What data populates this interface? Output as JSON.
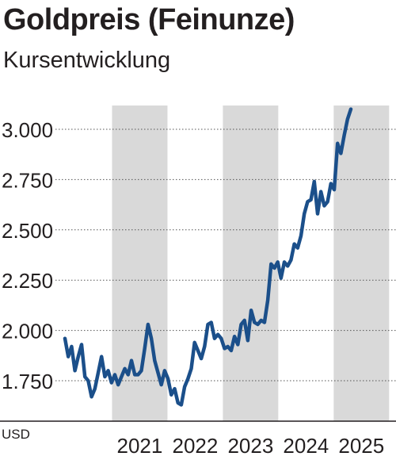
{
  "title": "Goldpreis (Feinunze)",
  "subtitle": "Kursentwicklung",
  "chart_data": {
    "type": "line",
    "title": "Goldpreis (Feinunze)",
    "subtitle": "Kursentwicklung",
    "unit_label": "USD",
    "x_tick_labels": [
      "2021",
      "2022",
      "2023",
      "2024",
      "2025"
    ],
    "y_ticks": [
      1750,
      2000,
      2250,
      2500,
      2750,
      3000
    ],
    "y_tick_labels": [
      "1.750",
      "2.000",
      "2.250",
      "2.500",
      "2.750",
      "3.000"
    ],
    "ylim": [
      1600,
      3100
    ],
    "xlim": [
      2020.15,
      2025.42
    ],
    "grid": "horizontal dotted",
    "shaded_years": [
      "2021",
      "2023",
      "2025"
    ],
    "colors": {
      "line": "#1b4f8a",
      "band": "#d9d9d9",
      "grid": "#555555",
      "axis": "#231f20"
    },
    "series": [
      {
        "x": [
          2020.15,
          2020.21,
          2020.27,
          2020.33,
          2020.39,
          2020.45,
          2020.51,
          2020.57,
          2020.63,
          2020.69,
          2020.75,
          2020.81,
          2020.87,
          2020.93,
          2020.99,
          2021.05,
          2021.11,
          2021.17,
          2021.23,
          2021.29,
          2021.35,
          2021.41,
          2021.47,
          2021.53,
          2021.59,
          2021.65,
          2021.71,
          2021.77,
          2021.83,
          2021.89,
          2021.95,
          2022.01,
          2022.07,
          2022.13,
          2022.19,
          2022.25,
          2022.31,
          2022.37,
          2022.43,
          2022.49,
          2022.55,
          2022.61,
          2022.67,
          2022.73,
          2022.79,
          2022.85,
          2022.91,
          2022.97,
          2023.03,
          2023.09,
          2023.15,
          2023.21,
          2023.27,
          2023.33,
          2023.39,
          2023.45,
          2023.51,
          2023.57,
          2023.63,
          2023.69,
          2023.75,
          2023.81,
          2023.87,
          2023.93,
          2023.99,
          2024.05,
          2024.11,
          2024.17,
          2024.23,
          2024.29,
          2024.35,
          2024.41,
          2024.47,
          2024.53,
          2024.59,
          2024.65,
          2024.71,
          2024.77,
          2024.83,
          2024.89,
          2024.95,
          2025.01,
          2025.07,
          2025.13,
          2025.19,
          2025.25,
          2025.31
        ],
        "values": [
          1960,
          1870,
          1920,
          1800,
          1870,
          1930,
          1770,
          1750,
          1670,
          1710,
          1790,
          1870,
          1770,
          1800,
          1740,
          1780,
          1730,
          1770,
          1810,
          1780,
          1850,
          1780,
          1780,
          1800,
          1910,
          2030,
          1960,
          1850,
          1790,
          1730,
          1800,
          1760,
          1680,
          1710,
          1640,
          1630,
          1720,
          1760,
          1810,
          1940,
          1900,
          1860,
          1920,
          2030,
          2040,
          1960,
          1980,
          1960,
          1910,
          1920,
          1900,
          1970,
          1930,
          2030,
          2050,
          1950,
          2100,
          2040,
          2030,
          2050,
          2040,
          2150,
          2330,
          2310,
          2340,
          2260,
          2340,
          2320,
          2350,
          2430,
          2410,
          2470,
          2580,
          2640,
          2650,
          2740,
          2580,
          2690,
          2620,
          2640,
          2730,
          2700,
          2930,
          2880,
          2970,
          3050,
          3100
        ]
      }
    ]
  }
}
